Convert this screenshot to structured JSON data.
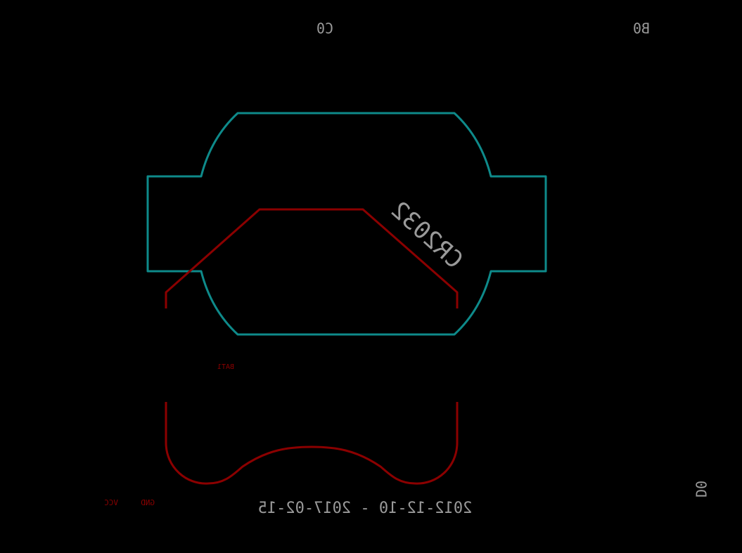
{
  "labels": {
    "c0": "C0",
    "b0": "B0",
    "d0": "D0",
    "battery_type": "CR2032",
    "part_ref": "BAT1",
    "pin_vcc": "VCC",
    "pin_gnd": "GND",
    "date_range": "2012-12-10 - 2017-02-15"
  },
  "colors": {
    "background": "#000000",
    "silkscreen": "#9a9a9a",
    "outline": "#0e8a8a",
    "copper": "#8b0000"
  }
}
